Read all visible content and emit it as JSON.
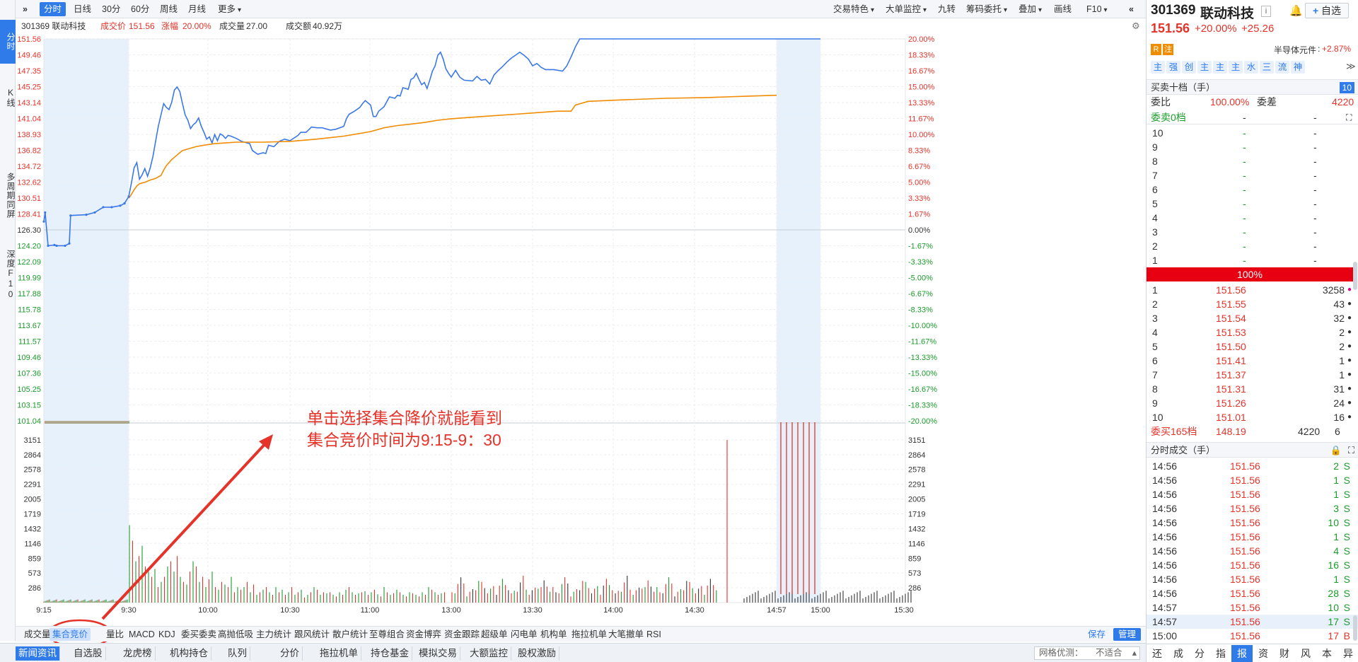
{
  "left_tabs": [
    {
      "label": "分时",
      "active": true
    },
    {
      "label": "K线",
      "active": false
    },
    {
      "label": "多周期同屏",
      "active": false
    },
    {
      "label": "深度F10",
      "active": false
    }
  ],
  "toolbar": {
    "expand_icon": "»",
    "periods": [
      "分时",
      "日线",
      "30分",
      "60分",
      "周线",
      "月线",
      "更多"
    ],
    "active_period": "分时",
    "right_tools": [
      "交易特色",
      "大单监控",
      "九转",
      "筹码委托",
      "叠加",
      "画线",
      "F10"
    ],
    "collapse_icon": "«"
  },
  "info": {
    "code_name": "301369 联动科技",
    "price_label": "成交价",
    "price": "151.56",
    "change_label": "涨幅",
    "change": "20.00%",
    "volume_label": "成交量",
    "volume": "27.00",
    "amount_label": "成交额",
    "amount": "40.92万"
  },
  "chart_data": {
    "type": "line",
    "title": "",
    "x_ticks": [
      "9:15",
      "9:30",
      "10:00",
      "10:30",
      "11:00",
      "13:00",
      "13:30",
      "14:00",
      "14:30",
      "14:57",
      "15:00",
      "15:30"
    ],
    "y_left_ticks": [
      "151.56",
      "149.46",
      "147.35",
      "145.25",
      "143.14",
      "141.04",
      "138.93",
      "136.82",
      "134.72",
      "132.62",
      "130.51",
      "128.41",
      "126.30",
      "124.20",
      "122.09",
      "119.99",
      "117.88",
      "115.78",
      "113.67",
      "111.57",
      "109.46",
      "107.36",
      "105.25",
      "103.15",
      "101.04"
    ],
    "y_right_ticks": [
      "20.00%",
      "18.33%",
      "16.67%",
      "15.00%",
      "13.33%",
      "11.67%",
      "10.00%",
      "8.33%",
      "6.67%",
      "5.00%",
      "3.33%",
      "1.67%",
      "0.00%",
      "-1.67%",
      "-3.33%",
      "-5.00%",
      "-6.67%",
      "-8.33%",
      "-10.00%",
      "-11.67%",
      "-13.33%",
      "-15.00%",
      "-16.67%",
      "-18.33%",
      "-20.00%"
    ],
    "ylim": [
      101.04,
      151.56
    ],
    "prev_close": 126.3,
    "volume_ticks": [
      "3151",
      "2864",
      "2578",
      "2291",
      "2005",
      "1719",
      "1432",
      "1146",
      "859",
      "573",
      "286"
    ],
    "volume_max": 3437,
    "series": [
      {
        "points": [
          [
            0,
            127.4
          ],
          [
            0.3,
            128.6
          ],
          [
            1,
            124.2
          ],
          [
            2.5,
            124.3
          ],
          [
            3,
            124.2
          ],
          [
            5,
            124.2
          ],
          [
            6,
            124.5
          ],
          [
            6.3,
            128.2
          ],
          [
            10,
            128.3
          ],
          [
            12,
            128.6
          ],
          [
            14,
            129.3
          ],
          [
            16,
            129.3
          ],
          [
            18,
            129.5
          ],
          [
            19,
            129.8
          ],
          [
            20,
            130.7
          ],
          [
            21,
            132.5
          ],
          [
            22,
            134.5
          ],
          [
            23,
            135.2
          ],
          [
            24,
            133.0
          ],
          [
            25,
            133.6
          ],
          [
            26,
            134.4
          ],
          [
            27,
            133.4
          ],
          [
            28,
            134.5
          ],
          [
            29,
            136.0
          ],
          [
            30,
            138.0
          ],
          [
            31,
            140.0
          ],
          [
            32,
            141.5
          ],
          [
            33,
            143.0
          ],
          [
            34,
            142.5
          ],
          [
            35,
            142.2
          ],
          [
            36,
            143.2
          ],
          [
            37,
            144.8
          ],
          [
            38,
            145.2
          ],
          [
            39,
            144.6
          ],
          [
            40,
            143.0
          ],
          [
            41,
            141.5
          ],
          [
            42,
            140.8
          ],
          [
            43,
            139.7
          ],
          [
            44,
            140.2
          ],
          [
            45,
            140.5
          ],
          [
            46,
            141.1
          ],
          [
            47,
            140.0
          ],
          [
            48,
            139.2
          ],
          [
            49,
            138.3
          ],
          [
            50,
            138.6
          ],
          [
            51,
            137.8
          ],
          [
            52,
            138.9
          ],
          [
            53,
            138.1
          ],
          [
            54,
            139.0
          ],
          [
            55,
            138.8
          ],
          [
            56,
            138.4
          ],
          [
            57,
            138.8
          ],
          [
            58,
            138.7
          ],
          [
            60,
            138.4
          ],
          [
            62,
            138.0
          ],
          [
            65,
            137.7
          ],
          [
            66,
            136.8
          ],
          [
            68,
            136.3
          ],
          [
            70,
            136.5
          ],
          [
            71,
            136.4
          ],
          [
            72,
            137.5
          ],
          [
            74,
            137.3
          ],
          [
            76,
            138.0
          ],
          [
            78,
            138.3
          ],
          [
            80,
            138.1
          ],
          [
            83,
            138.8
          ],
          [
            84,
            139.2
          ],
          [
            86,
            139.2
          ],
          [
            88,
            139.9
          ],
          [
            90,
            139.8
          ],
          [
            92,
            139.8
          ],
          [
            95,
            139.5
          ],
          [
            97,
            139.6
          ],
          [
            100,
            140.0
          ],
          [
            101,
            141.0
          ],
          [
            102,
            141.6
          ],
          [
            104,
            142.0
          ],
          [
            106,
            142.5
          ],
          [
            107,
            143.0
          ],
          [
            108,
            143.4
          ],
          [
            110,
            142.8
          ],
          [
            111,
            141.3
          ],
          [
            112,
            141.3
          ],
          [
            113,
            142.0
          ],
          [
            115,
            142.6
          ],
          [
            117,
            143.9
          ],
          [
            119,
            143.7
          ],
          [
            120,
            144.1
          ],
          [
            121,
            144.0
          ],
          [
            122,
            145.1
          ],
          [
            124,
            144.9
          ],
          [
            125,
            146.2
          ],
          [
            126,
            146.4
          ],
          [
            127,
            147.0
          ],
          [
            128,
            146.2
          ],
          [
            129,
            145.5
          ],
          [
            130,
            145.8
          ],
          [
            131,
            145.0
          ],
          [
            132,
            146.1
          ],
          [
            133,
            147.3
          ],
          [
            134,
            148.0
          ],
          [
            135,
            149.4
          ],
          [
            136,
            149.8
          ],
          [
            137,
            148.9
          ],
          [
            138,
            147.6
          ],
          [
            139,
            147.0
          ],
          [
            140,
            146.5
          ],
          [
            141,
            147.4
          ],
          [
            142,
            146.5
          ],
          [
            143,
            146.1
          ],
          [
            145,
            146.0
          ],
          [
            146,
            146.6
          ],
          [
            147,
            146.1
          ],
          [
            148,
            146.2
          ],
          [
            149,
            145.6
          ],
          [
            150,
            146.8
          ],
          [
            151,
            147.4
          ],
          [
            152,
            147.9
          ],
          [
            153,
            148.5
          ],
          [
            154,
            149.0
          ],
          [
            155,
            149.4
          ],
          [
            156,
            149.8
          ],
          [
            157,
            149.4
          ],
          [
            158,
            148.9
          ],
          [
            159,
            148.0
          ],
          [
            160,
            148.3
          ],
          [
            161,
            147.8
          ],
          [
            162,
            147.5
          ],
          [
            164,
            147.5
          ],
          [
            166,
            147.3
          ],
          [
            167,
            148.0
          ],
          [
            168,
            149.2
          ],
          [
            169,
            150.5
          ],
          [
            170,
            151.56
          ],
          [
            200,
            151.56
          ],
          [
            217,
            151.56
          ],
          [
            218,
            151.56
          ],
          [
            230,
            151.56
          ]
        ]
      },
      {
        "points": [
          [
            20,
            130.5
          ],
          [
            21,
            131.0
          ],
          [
            22,
            131.6
          ],
          [
            23,
            132.1
          ],
          [
            24,
            132.4
          ],
          [
            26,
            132.6
          ],
          [
            28,
            132.9
          ],
          [
            30,
            133.1
          ],
          [
            32,
            133.5
          ],
          [
            33,
            134.2
          ],
          [
            34,
            134.8
          ],
          [
            36,
            135.6
          ],
          [
            38,
            136.2
          ],
          [
            40,
            136.8
          ],
          [
            42,
            137.0
          ],
          [
            45,
            137.3
          ],
          [
            48,
            137.5
          ],
          [
            52,
            137.7
          ],
          [
            56,
            137.8
          ],
          [
            60,
            137.9
          ],
          [
            65,
            137.9
          ],
          [
            70,
            137.9
          ],
          [
            80,
            138.0
          ],
          [
            90,
            138.3
          ],
          [
            100,
            138.7
          ],
          [
            105,
            139.0
          ],
          [
            110,
            139.3
          ],
          [
            115,
            139.8
          ],
          [
            120,
            140.1
          ],
          [
            125,
            140.3
          ],
          [
            130,
            140.5
          ],
          [
            135,
            140.8
          ],
          [
            140,
            141.0
          ],
          [
            145,
            141.2
          ],
          [
            150,
            141.4
          ],
          [
            155,
            141.6
          ],
          [
            160,
            141.8
          ],
          [
            165,
            142.0
          ],
          [
            168,
            142.0
          ],
          [
            169,
            142.8
          ],
          [
            172,
            143.3
          ],
          [
            180,
            143.5
          ],
          [
            190,
            143.7
          ],
          [
            200,
            143.8
          ],
          [
            210,
            144.0
          ],
          [
            216,
            144.1
          ]
        ]
      }
    ]
  },
  "bottom_tabs": [
    "成交量",
    "集合竞价",
    "量比",
    "MACD",
    "KDJ",
    "委买委卖",
    "高抛低吸",
    "主力统计",
    "跟风统计",
    "散户统计",
    "至尊组合",
    "资金博弈",
    "资金跟踪",
    "超级单",
    "闪电单",
    "机构单",
    "拖拉机单",
    "大笔撤单",
    "RSI"
  ],
  "active_bottom_tab": "集合竞价",
  "bottom_actions": {
    "save": "保存",
    "manage": "管理"
  },
  "news_tabs": [
    "新闻资讯",
    "自选股",
    "龙虎榜",
    "机构持仓",
    "队列",
    "分价",
    "拖拉机单",
    "持仓基金",
    "模拟交易",
    "大额监控",
    "股权激励"
  ],
  "grid_option": {
    "label": "网格优测：",
    "value": "不适合"
  },
  "annotation": {
    "line1": "单击选择集合降价就能看到",
    "line2": "集合竞价时间为9:15-9：30"
  },
  "stock": {
    "code": "301369",
    "name": "联动科技",
    "price": "151.56",
    "change_pct": "+20.00%",
    "change_amt": "+25.26",
    "tags": [
      "R",
      "注"
    ],
    "sector": "半导体元件",
    "sector_change": "+2.87%",
    "add_label": "自选",
    "feature_icons": [
      "主",
      "强",
      "创",
      "主",
      "主",
      "主",
      "水",
      "三",
      "流",
      "神"
    ]
  },
  "orderbook": {
    "title": "买卖十档（手）",
    "depth_badge": "10",
    "ratio_label": "委比",
    "ratio": "100.00%",
    "diff_label": "委差",
    "diff": "4220",
    "sell_summary_label": "委卖0档",
    "sell_summary_price": "-",
    "sell_summary_vol": "-",
    "asks": [
      {
        "level": "10",
        "price": "-",
        "vol": "-"
      },
      {
        "level": "9",
        "price": "-",
        "vol": "-"
      },
      {
        "level": "8",
        "price": "-",
        "vol": "-"
      },
      {
        "level": "7",
        "price": "-",
        "vol": "-"
      },
      {
        "level": "6",
        "price": "-",
        "vol": "-"
      },
      {
        "level": "5",
        "price": "-",
        "vol": "-"
      },
      {
        "level": "4",
        "price": "-",
        "vol": "-"
      },
      {
        "level": "3",
        "price": "-",
        "vol": "-"
      },
      {
        "level": "2",
        "price": "-",
        "vol": "-"
      },
      {
        "level": "1",
        "price": "-",
        "vol": "-"
      }
    ],
    "buy_ratio": "100%",
    "bids": [
      {
        "level": "1",
        "price": "151.56",
        "vol": "3258"
      },
      {
        "level": "2",
        "price": "151.55",
        "vol": "43"
      },
      {
        "level": "3",
        "price": "151.54",
        "vol": "32"
      },
      {
        "level": "4",
        "price": "151.53",
        "vol": "2"
      },
      {
        "level": "5",
        "price": "151.50",
        "vol": "2"
      },
      {
        "level": "6",
        "price": "151.41",
        "vol": "1"
      },
      {
        "level": "7",
        "price": "151.37",
        "vol": "1"
      },
      {
        "level": "8",
        "price": "151.31",
        "vol": "31"
      },
      {
        "level": "9",
        "price": "151.26",
        "vol": "24"
      },
      {
        "level": "10",
        "price": "151.01",
        "vol": "16"
      }
    ],
    "buy_summary_label": "委买165档",
    "buy_summary_price": "148.19",
    "buy_summary_vol": "4220",
    "buy_summary_count": "6"
  },
  "trades": {
    "title": "分时成交（手）",
    "rows": [
      {
        "time": "14:56",
        "price": "151.56",
        "vol": "2",
        "side": "S"
      },
      {
        "time": "14:56",
        "price": "151.56",
        "vol": "1",
        "side": "S"
      },
      {
        "time": "14:56",
        "price": "151.56",
        "vol": "1",
        "side": "S"
      },
      {
        "time": "14:56",
        "price": "151.56",
        "vol": "3",
        "side": "S"
      },
      {
        "time": "14:56",
        "price": "151.56",
        "vol": "10",
        "side": "S"
      },
      {
        "time": "14:56",
        "price": "151.56",
        "vol": "1",
        "side": "S"
      },
      {
        "time": "14:56",
        "price": "151.56",
        "vol": "4",
        "side": "S"
      },
      {
        "time": "14:56",
        "price": "151.56",
        "vol": "16",
        "side": "S"
      },
      {
        "time": "14:56",
        "price": "151.56",
        "vol": "1",
        "side": "S"
      },
      {
        "time": "14:56",
        "price": "151.56",
        "vol": "28",
        "side": "S"
      },
      {
        "time": "14:57",
        "price": "151.56",
        "vol": "10",
        "side": "S"
      },
      {
        "time": "14:57",
        "price": "151.56",
        "vol": "17",
        "side": "S"
      },
      {
        "time": "15:00",
        "price": "151.56",
        "vol": "17",
        "side": "B"
      }
    ]
  },
  "func_tabs": [
    "还",
    "成",
    "分",
    "指",
    "报",
    "资",
    "财",
    "风",
    "本",
    "异"
  ],
  "active_func_tab": "报",
  "colors": {
    "up": "#e5332a",
    "down": "#1a9b2a",
    "price_line": "#3b78e7",
    "avg_line": "#f08c00",
    "accent": "#2f7bea",
    "auction_bg": "#e6f1fc"
  }
}
